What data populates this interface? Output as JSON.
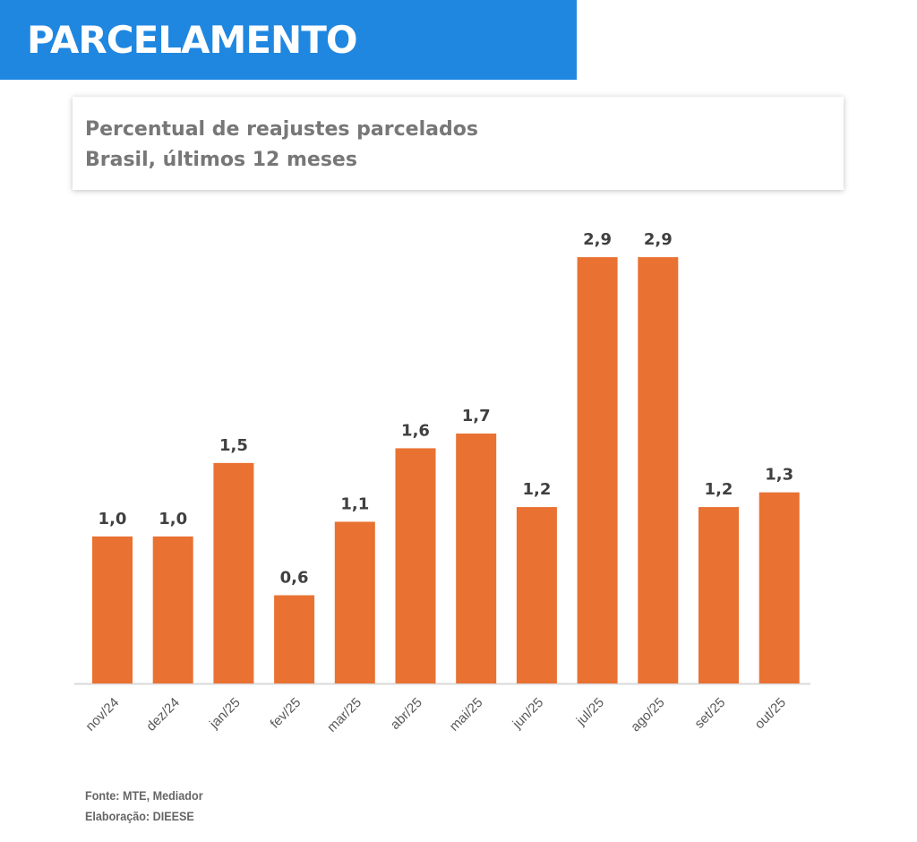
{
  "header": {
    "title": "PARCELAMENTO"
  },
  "chart_data": {
    "type": "bar",
    "title": "Percentual de reajustes parcelados",
    "subtitle": "Brasil, últimos 12 meses",
    "categories": [
      "nov/24",
      "dez/24",
      "jan/25",
      "fev/25",
      "mar/25",
      "abr/25",
      "mai/25",
      "jun/25",
      "jul/25",
      "ago/25",
      "set/25",
      "out/25"
    ],
    "values": [
      1.0,
      1.0,
      1.5,
      0.6,
      1.1,
      1.6,
      1.7,
      1.2,
      2.9,
      2.9,
      1.2,
      1.3
    ],
    "value_labels": [
      "1,0",
      "1,0",
      "1,5",
      "0,6",
      "1,1",
      "1,6",
      "1,7",
      "1,2",
      "2,9",
      "2,9",
      "1,2",
      "1,3"
    ],
    "xlabel": "",
    "ylabel": "",
    "ylim": [
      0,
      2.9
    ],
    "grid": false,
    "bar_color": "#e97132"
  },
  "footer": {
    "source": "Fonte: MTE, Mediador",
    "elaboration": "Elaboração: DIEESE"
  }
}
